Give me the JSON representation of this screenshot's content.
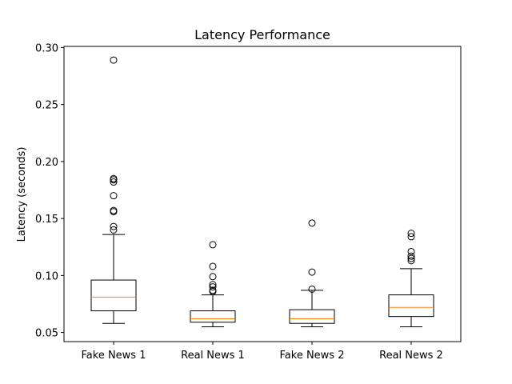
{
  "chart_data": {
    "type": "boxplot",
    "title": "Latency Performance",
    "xlabel": "",
    "ylabel": "Latency (seconds)",
    "ylim": [
      0.042,
      0.301
    ],
    "yticks": [
      "0.05",
      "0.10",
      "0.15",
      "0.20",
      "0.25",
      "0.30"
    ],
    "grid": false,
    "categories": [
      "Fake News 1",
      "Real News 1",
      "Fake News 2",
      "Real News 2"
    ],
    "boxes": [
      {
        "whisker_low": 0.058,
        "q1": 0.069,
        "median": 0.081,
        "q3": 0.096,
        "whisker_high": 0.136,
        "outliers": [
          0.289,
          0.185,
          0.184,
          0.182,
          0.17,
          0.157,
          0.156,
          0.143,
          0.14
        ]
      },
      {
        "whisker_low": 0.055,
        "q1": 0.059,
        "median": 0.062,
        "q3": 0.069,
        "whisker_high": 0.083,
        "outliers": [
          0.127,
          0.108,
          0.099,
          0.092,
          0.09,
          0.087,
          0.086
        ]
      },
      {
        "whisker_low": 0.055,
        "q1": 0.058,
        "median": 0.062,
        "q3": 0.07,
        "whisker_high": 0.087,
        "outliers": [
          0.146,
          0.103,
          0.088
        ]
      },
      {
        "whisker_low": 0.055,
        "q1": 0.064,
        "median": 0.072,
        "q3": 0.083,
        "whisker_high": 0.106,
        "outliers": [
          0.137,
          0.134,
          0.121,
          0.117,
          0.115,
          0.113
        ]
      }
    ],
    "colors": {
      "box": "#000000",
      "median": "#ff7f0e",
      "outlier": "#000000"
    }
  }
}
